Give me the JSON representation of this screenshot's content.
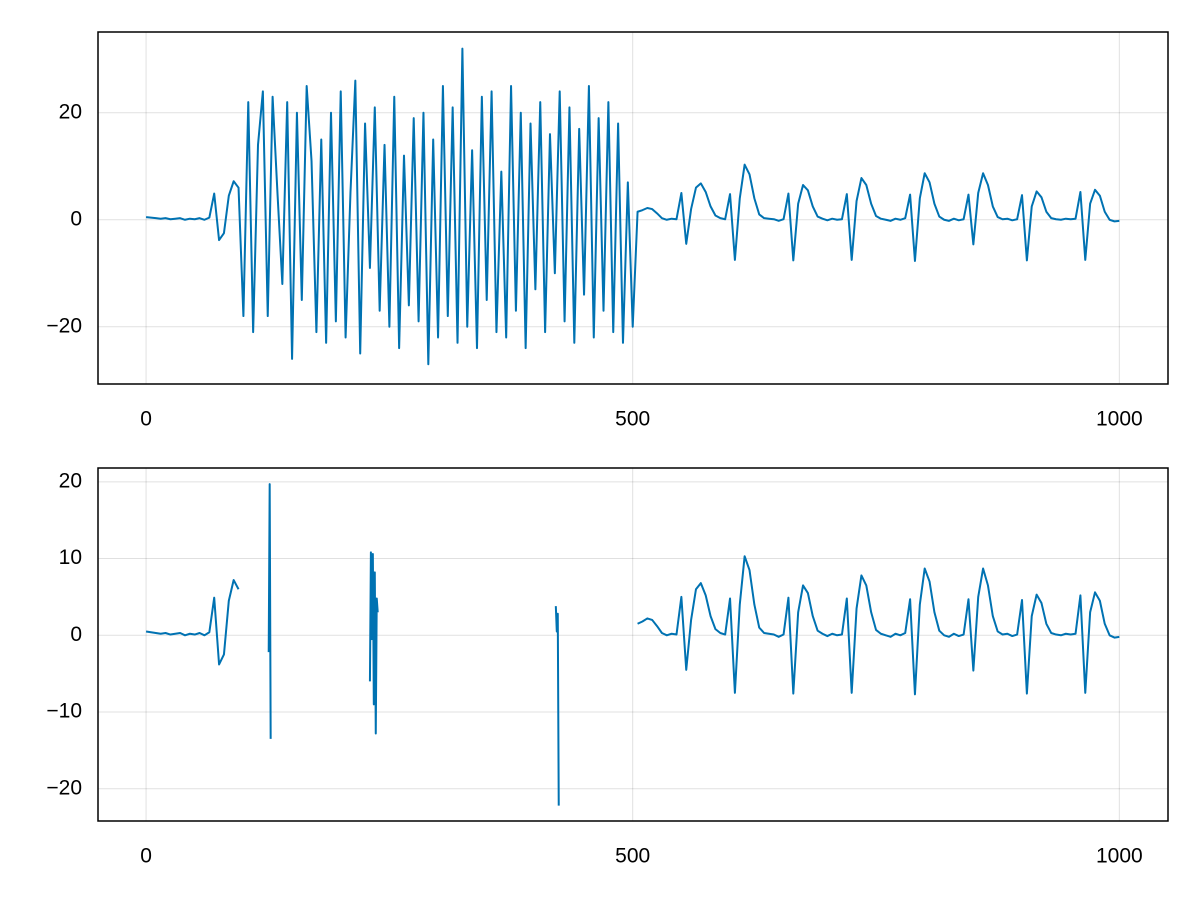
{
  "chart_data": [
    {
      "type": "line",
      "color": "#0072b2",
      "grid": true,
      "xlim": [
        -49.4,
        1050
      ],
      "ylim": [
        -30.7,
        35.1
      ],
      "xticks": [
        0,
        500,
        1000
      ],
      "yticks": [
        {
          "value": -20,
          "label": "−20"
        },
        0,
        20
      ],
      "x": [
        0,
        5,
        10,
        15,
        20,
        25,
        30,
        35,
        40,
        45,
        50,
        55,
        60,
        65,
        70,
        75,
        80,
        85,
        90,
        95,
        100,
        105,
        110,
        115,
        120,
        125,
        130,
        135,
        140,
        145,
        150,
        155,
        160,
        165,
        170,
        175,
        180,
        185,
        190,
        195,
        200,
        205,
        210,
        215,
        220,
        225,
        230,
        235,
        240,
        245,
        250,
        255,
        260,
        265,
        270,
        275,
        280,
        285,
        290,
        295,
        300,
        305,
        310,
        315,
        320,
        325,
        330,
        335,
        340,
        345,
        350,
        355,
        360,
        365,
        370,
        375,
        380,
        385,
        390,
        395,
        400,
        405,
        410,
        415,
        420,
        425,
        430,
        435,
        440,
        445,
        450,
        455,
        460,
        465,
        470,
        475,
        480,
        485,
        490,
        495,
        500,
        505,
        510,
        515,
        520,
        525,
        530,
        535,
        540,
        545,
        550,
        555,
        560,
        565,
        570,
        575,
        580,
        585,
        590,
        595,
        600,
        605,
        610,
        615,
        620,
        625,
        630,
        635,
        640,
        645,
        650,
        655,
        660,
        665,
        670,
        675,
        680,
        685,
        690,
        695,
        700,
        705,
        710,
        715,
        720,
        725,
        730,
        735,
        740,
        745,
        750,
        755,
        760,
        765,
        770,
        775,
        780,
        785,
        790,
        795,
        800,
        805,
        810,
        815,
        820,
        825,
        830,
        835,
        840,
        845,
        850,
        855,
        860,
        865,
        870,
        875,
        880,
        885,
        890,
        895,
        900,
        905,
        910,
        915,
        920,
        925,
        930,
        935,
        940,
        945,
        950,
        955,
        960,
        965,
        970,
        975,
        980,
        985,
        990,
        995,
        1000
      ],
      "values": [
        0.5,
        0.4,
        0.3,
        0.2,
        0.3,
        0.1,
        0.2,
        0.3,
        0.0,
        0.2,
        0.1,
        0.3,
        0.0,
        0.4,
        4.9,
        -3.8,
        -2.5,
        4.5,
        7.2,
        6.0,
        -18,
        22,
        -21,
        14,
        24,
        -18,
        23,
        5,
        -12,
        22,
        -26,
        20,
        -15,
        25,
        11,
        -21,
        15,
        -23,
        20,
        -19,
        24,
        -22,
        5,
        26,
        -25,
        18,
        -9,
        21,
        -17,
        14,
        -20,
        23,
        -24,
        12,
        -16,
        19,
        -19,
        20,
        -27,
        15,
        -22,
        25,
        -18,
        21,
        -23,
        32,
        -20,
        13,
        -24,
        23,
        -15,
        24,
        -21,
        9,
        -22,
        25,
        -17,
        20,
        -24,
        18,
        -13,
        22,
        -21,
        16,
        -10,
        24,
        -19,
        21,
        -23,
        17,
        -14,
        25,
        -22,
        19,
        -17,
        22,
        -21,
        18,
        -23,
        7,
        -20,
        1.5,
        1.8,
        2.2,
        2.0,
        1.2,
        0.3,
        0.0,
        0.2,
        0.1,
        5.0,
        -4.5,
        2.0,
        6.0,
        6.8,
        5.2,
        2.5,
        0.8,
        0.3,
        0.1,
        4.8,
        -7.5,
        4.0,
        10.3,
        8.5,
        4.0,
        1.0,
        0.3,
        0.2,
        0.1,
        -0.2,
        0.1,
        4.9,
        -7.6,
        3.0,
        6.5,
        5.5,
        2.5,
        0.6,
        0.2,
        -0.1,
        0.2,
        0.0,
        0.1,
        4.8,
        -7.5,
        3.5,
        7.8,
        6.5,
        3.0,
        0.7,
        0.2,
        0.0,
        -0.2,
        0.2,
        0.0,
        0.3,
        4.7,
        -7.7,
        4.0,
        8.7,
        7.0,
        3.0,
        0.6,
        0.0,
        -0.2,
        0.2,
        -0.1,
        0.1,
        4.7,
        -4.6,
        5.0,
        8.7,
        6.5,
        2.5,
        0.5,
        0.1,
        0.2,
        -0.1,
        0.1,
        4.6,
        -7.6,
        2.5,
        5.3,
        4.2,
        1.5,
        0.3,
        0.1,
        0.0,
        0.2,
        0.1,
        0.2,
        5.2,
        -7.5,
        3.0,
        5.6,
        4.5,
        1.5,
        0.0,
        -0.3,
        -0.2
      ]
    },
    {
      "type": "line",
      "color": "#0072b2",
      "grid": true,
      "xlim": [
        -49.4,
        1050
      ],
      "ylim": [
        -24.2,
        21.8
      ],
      "xticks": [
        0,
        500,
        1000
      ],
      "yticks": [
        {
          "value": -20,
          "label": "−20"
        },
        {
          "value": -10,
          "label": "−10"
        },
        0,
        10,
        20
      ],
      "x": [
        0,
        5,
        10,
        15,
        20,
        25,
        30,
        35,
        40,
        45,
        50,
        55,
        60,
        65,
        70,
        75,
        80,
        85,
        90,
        95,
        100,
        126,
        127,
        128,
        130,
        230,
        231,
        232,
        233,
        234,
        235,
        236,
        237,
        238,
        240,
        421,
        422,
        423,
        424,
        430,
        505,
        510,
        515,
        520,
        525,
        530,
        535,
        540,
        545,
        550,
        555,
        560,
        565,
        570,
        575,
        580,
        585,
        590,
        595,
        600,
        605,
        610,
        615,
        620,
        625,
        630,
        635,
        640,
        645,
        650,
        655,
        660,
        665,
        670,
        675,
        680,
        685,
        690,
        695,
        700,
        705,
        710,
        715,
        720,
        725,
        730,
        735,
        740,
        745,
        750,
        755,
        760,
        765,
        770,
        775,
        780,
        785,
        790,
        795,
        800,
        805,
        810,
        815,
        820,
        825,
        830,
        835,
        840,
        845,
        850,
        855,
        860,
        865,
        870,
        875,
        880,
        885,
        890,
        895,
        900,
        905,
        910,
        915,
        920,
        925,
        930,
        935,
        940,
        945,
        950,
        955,
        960,
        965,
        970,
        975,
        980,
        985,
        990,
        995,
        1000
      ],
      "values": [
        0.5,
        0.4,
        0.3,
        0.2,
        0.3,
        0.1,
        0.2,
        0.3,
        0.0,
        0.2,
        0.1,
        0.3,
        0.0,
        0.4,
        4.9,
        -3.8,
        -2.5,
        4.5,
        7.2,
        6.0,
        null,
        -2.2,
        19.7,
        -13.5,
        null,
        -6,
        10.8,
        -0.5,
        10.6,
        -9,
        8.2,
        -12.8,
        4.8,
        3.0,
        null,
        3.8,
        0.5,
        2.8,
        -22.2,
        null,
        1.5,
        1.8,
        2.2,
        2.0,
        1.2,
        0.3,
        0.0,
        0.2,
        0.1,
        5.0,
        -4.5,
        2.0,
        6.0,
        6.8,
        5.2,
        2.5,
        0.8,
        0.3,
        0.1,
        4.8,
        -7.5,
        4.0,
        10.3,
        8.5,
        4.0,
        1.0,
        0.3,
        0.2,
        0.1,
        -0.2,
        0.1,
        4.9,
        -7.6,
        3.0,
        6.5,
        5.5,
        2.5,
        0.6,
        0.2,
        -0.1,
        0.2,
        0.0,
        0.1,
        4.8,
        -7.5,
        3.5,
        7.8,
        6.5,
        3.0,
        0.7,
        0.2,
        0.0,
        -0.2,
        0.2,
        0.0,
        0.3,
        4.7,
        -7.7,
        4.0,
        8.7,
        7.0,
        3.0,
        0.6,
        0.0,
        -0.2,
        0.2,
        -0.1,
        0.1,
        4.7,
        -4.6,
        5.0,
        8.7,
        6.5,
        2.5,
        0.5,
        0.1,
        0.2,
        -0.1,
        0.1,
        4.6,
        -7.6,
        2.5,
        5.3,
        4.2,
        1.5,
        0.3,
        0.1,
        0.0,
        0.2,
        0.1,
        0.2,
        5.2,
        -7.5,
        3.0,
        5.6,
        4.5,
        1.5,
        0.0,
        -0.3,
        -0.2
      ]
    }
  ]
}
